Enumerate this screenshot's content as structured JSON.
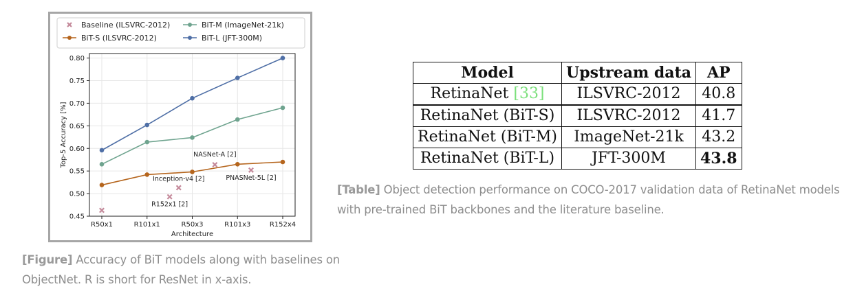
{
  "figure_caption": {
    "tag": "[Figure]",
    "text": " Accuracy of BiT models along with baselines on ObjectNet. R is short for ResNet in x-axis."
  },
  "table_caption": {
    "tag": "[Table]",
    "text": " Object detection performance on COCO-2017 validation data of RetinaNet models with pre-trained BiT backbones and the literature baseline."
  },
  "table": {
    "headers": [
      "Model",
      "Upstream data",
      "AP"
    ],
    "rows": [
      {
        "model": "RetinaNet ",
        "ref": "[33]",
        "data": "ILSVRC-2012",
        "ap": "40.8"
      },
      {
        "model": "RetinaNet (BiT-S)",
        "data": "ILSVRC-2012",
        "ap": "41.7"
      },
      {
        "model": "RetinaNet (BiT-M)",
        "data": "ImageNet-21k",
        "ap": "43.2"
      },
      {
        "model": "RetinaNet (BiT-L)",
        "data": "JFT-300M",
        "ap": "43.8"
      }
    ]
  },
  "chart_data": {
    "type": "line",
    "xlabel": "Architecture",
    "ylabel": "Top-5 Accuracy [%]",
    "categories": [
      "R50x1",
      "R101x1",
      "R50x3",
      "R101x3",
      "R152x4"
    ],
    "ylim": [
      0.45,
      0.81
    ],
    "yticks": [
      0.45,
      0.5,
      0.55,
      0.6,
      0.65,
      0.7,
      0.75,
      0.8
    ],
    "grid": true,
    "legend_position": "top",
    "series": [
      {
        "name": "BiT-S (ILSVRC-2012)",
        "color": "#b5651d",
        "values": [
          0.519,
          0.542,
          0.548,
          0.565,
          0.57
        ]
      },
      {
        "name": "BiT-M (ImageNet-21k)",
        "color": "#6fa48f",
        "values": [
          0.565,
          0.614,
          0.624,
          0.664,
          0.69
        ]
      },
      {
        "name": "BiT-L (JFT-300M)",
        "color": "#4f6fa6",
        "values": [
          0.596,
          0.652,
          0.711,
          0.756,
          0.8
        ]
      }
    ],
    "baseline": {
      "name": "Baseline (ILSVRC-2012)",
      "color": "#c4899a",
      "points": [
        {
          "x": 0.0,
          "y": 0.463,
          "label": ""
        },
        {
          "x": 1.5,
          "y": 0.493,
          "label": "R152x1 [2]"
        },
        {
          "x": 1.7,
          "y": 0.513,
          "label": "Inception-v4 [2]"
        },
        {
          "x": 2.5,
          "y": 0.564,
          "label": "NASNet-A [2]"
        },
        {
          "x": 3.3,
          "y": 0.552,
          "label": "PNASNet-5L [2]"
        }
      ]
    }
  }
}
